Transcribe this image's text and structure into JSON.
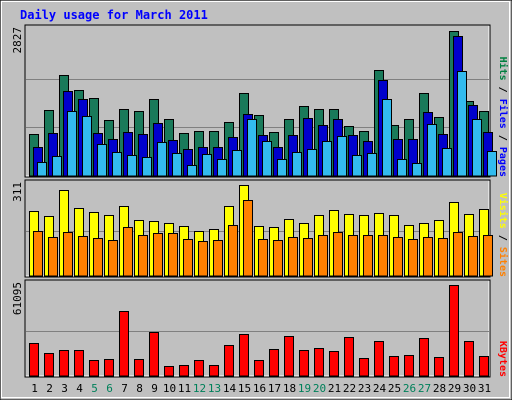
{
  "chart_data": [
    {
      "type": "bar",
      "title": "Daily usage for March 2011",
      "categories": [
        "1",
        "2",
        "3",
        "4",
        "5",
        "6",
        "7",
        "8",
        "9",
        "10",
        "11",
        "12",
        "13",
        "14",
        "15",
        "16",
        "17",
        "18",
        "19",
        "20",
        "21",
        "22",
        "23",
        "24",
        "25",
        "26",
        "27",
        "28",
        "29",
        "30",
        "31"
      ],
      "weekend_days": [
        "5",
        "6",
        "12",
        "13",
        "19",
        "20",
        "26",
        "27"
      ],
      "ylabel_max": "2827",
      "ylim": [
        0,
        2827
      ],
      "legend": [
        {
          "label": "Pages",
          "color": "#0000ff"
        },
        {
          "label": "Files",
          "color": "#0000ff"
        },
        {
          "label": "Hits",
          "color": "#008040"
        }
      ],
      "series": [
        {
          "name": "Hits",
          "color": "#1a7a5a",
          "values": [
            820,
            1280,
            1960,
            1660,
            1510,
            1090,
            1290,
            1260,
            1500,
            1100,
            830,
            880,
            870,
            1050,
            1600,
            1180,
            850,
            1110,
            1360,
            1300,
            1290,
            960,
            880,
            2050,
            980,
            1110,
            1600,
            1150,
            2800,
            1450,
            1250
          ]
        },
        {
          "name": "Files",
          "color": "#0000cc",
          "values": [
            560,
            840,
            1650,
            1500,
            830,
            720,
            850,
            810,
            1020,
            700,
            530,
            570,
            560,
            760,
            1210,
            800,
            560,
            800,
            1130,
            990,
            1110,
            790,
            670,
            1850,
            720,
            720,
            1230,
            810,
            2720,
            1370,
            860
          ]
        },
        {
          "name": "Pages",
          "color": "#33bbee",
          "values": [
            280,
            380,
            1260,
            1160,
            610,
            460,
            410,
            360,
            650,
            450,
            220,
            420,
            330,
            500,
            1100,
            670,
            330,
            470,
            530,
            670,
            780,
            400,
            440,
            1500,
            330,
            260,
            1000,
            540,
            2030,
            1100,
            480
          ]
        }
      ]
    },
    {
      "type": "bar",
      "ylabel_max": "311",
      "ylim": [
        0,
        311
      ],
      "legend": [
        {
          "label": "Sites",
          "color": "#ff8000"
        },
        {
          "label": "Visits",
          "color": "#ffff00"
        }
      ],
      "series": [
        {
          "name": "Visits",
          "color": "#ffff00",
          "values": [
            222,
            205,
            293,
            232,
            220,
            210,
            240,
            190,
            188,
            182,
            170,
            155,
            160,
            238,
            311,
            170,
            168,
            195,
            182,
            210,
            225,
            213,
            208,
            215,
            207,
            175,
            182,
            190,
            254,
            212,
            230
          ]
        },
        {
          "name": "Sites",
          "color": "#ff8000",
          "values": [
            155,
            132,
            152,
            138,
            130,
            122,
            168,
            140,
            148,
            148,
            126,
            120,
            124,
            175,
            260,
            128,
            124,
            132,
            130,
            140,
            152,
            140,
            140,
            140,
            132,
            128,
            132,
            130,
            150,
            135,
            140
          ]
        }
      ]
    },
    {
      "type": "bar",
      "ylabel_max": "61095",
      "ylim": [
        0,
        61095
      ],
      "legend": [
        {
          "label": "KBytes",
          "color": "#ff0000"
        }
      ],
      "series": [
        {
          "name": "KBytes",
          "color": "#ff0000",
          "values": [
            22400,
            15400,
            17500,
            17200,
            10500,
            11200,
            43400,
            11200,
            29400,
            7000,
            7700,
            10500,
            7700,
            21000,
            28000,
            10500,
            18200,
            26600,
            17500,
            18900,
            16800,
            25900,
            11900,
            23800,
            13300,
            14000,
            25200,
            12600,
            61095,
            23800,
            13300
          ]
        }
      ]
    }
  ]
}
